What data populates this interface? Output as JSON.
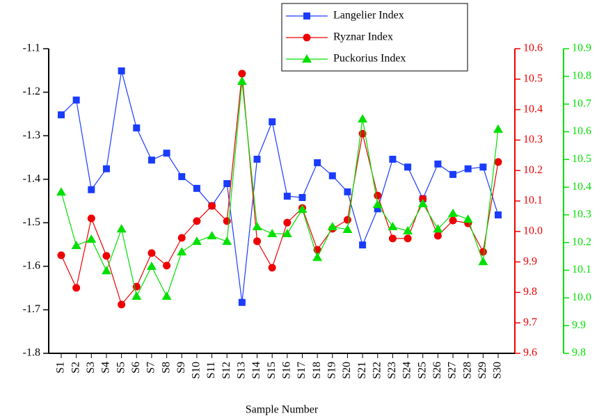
{
  "chart_data": {
    "type": "line",
    "x_label": "Sample Number",
    "categories": [
      "S1",
      "S2",
      "S3",
      "S4",
      "S5",
      "S6",
      "S7",
      "S8",
      "S9",
      "S10",
      "S11",
      "S12",
      "S13",
      "S14",
      "S15",
      "S16",
      "S17",
      "S18",
      "S19",
      "S20",
      "S21",
      "S22",
      "S23",
      "S24",
      "S25",
      "S26",
      "S27",
      "S28",
      "S29",
      "S30"
    ],
    "ylim": [
      -1.8,
      -1.1
    ],
    "yticks": [
      -1.1,
      -1.2,
      -1.3,
      -1.4,
      -1.5,
      -1.6,
      -1.7,
      -1.8
    ],
    "y2lim": [
      9.6,
      10.6
    ],
    "y2ticks": [
      10.6,
      10.5,
      10.4,
      10.3,
      10.2,
      10.1,
      {
        "value": 10,
        "label": "10.0"
      },
      9.9,
      9.8,
      9.7,
      9.6
    ],
    "y3lim": [
      9.8,
      10.9
    ],
    "y3ticks": [
      10.9,
      10.8,
      10.7,
      10.6,
      10.5,
      10.4,
      10.3,
      10.2,
      10.1,
      {
        "value": 10,
        "label": "10.0"
      },
      9.9,
      9.8
    ],
    "legend": "top-center",
    "series": [
      {
        "name": "Langelier Index",
        "color": "#1a3cff",
        "marker": "square",
        "axis": "y",
        "values": [
          -1.252,
          -1.218,
          -1.424,
          -1.376,
          -1.151,
          -1.282,
          -1.356,
          -1.34,
          -1.394,
          -1.421,
          -1.461,
          -1.41,
          -1.683,
          -1.354,
          -1.268,
          -1.439,
          -1.442,
          -1.362,
          -1.392,
          -1.429,
          -1.551,
          -1.468,
          -1.354,
          -1.372,
          -1.445,
          -1.365,
          -1.389,
          -1.376,
          -1.372,
          -1.482
        ]
      },
      {
        "name": "Ryznar Index",
        "color": "#ee0000",
        "marker": "circle",
        "axis": "y2",
        "values": [
          9.922,
          9.815,
          10.043,
          9.92,
          9.76,
          9.819,
          9.929,
          9.888,
          9.979,
          10.034,
          10.084,
          10.034,
          10.518,
          9.968,
          9.881,
          10.029,
          10.077,
          9.94,
          10.009,
          10.038,
          10.321,
          10.118,
          9.977,
          9.977,
          10.107,
          9.986,
          10.036,
          10.027,
          9.933,
          10.228
        ]
      },
      {
        "name": "Puckorius Index",
        "color": "#00e000",
        "marker": "triangle",
        "axis": "y3",
        "values": [
          10.382,
          10.189,
          10.212,
          10.098,
          10.249,
          10.006,
          10.114,
          10.006,
          10.166,
          10.204,
          10.224,
          10.204,
          10.782,
          10.257,
          10.232,
          10.232,
          10.32,
          10.146,
          10.257,
          10.247,
          10.646,
          10.337,
          10.257,
          10.242,
          10.34,
          10.249,
          10.305,
          10.284,
          10.131,
          10.609
        ]
      }
    ]
  }
}
